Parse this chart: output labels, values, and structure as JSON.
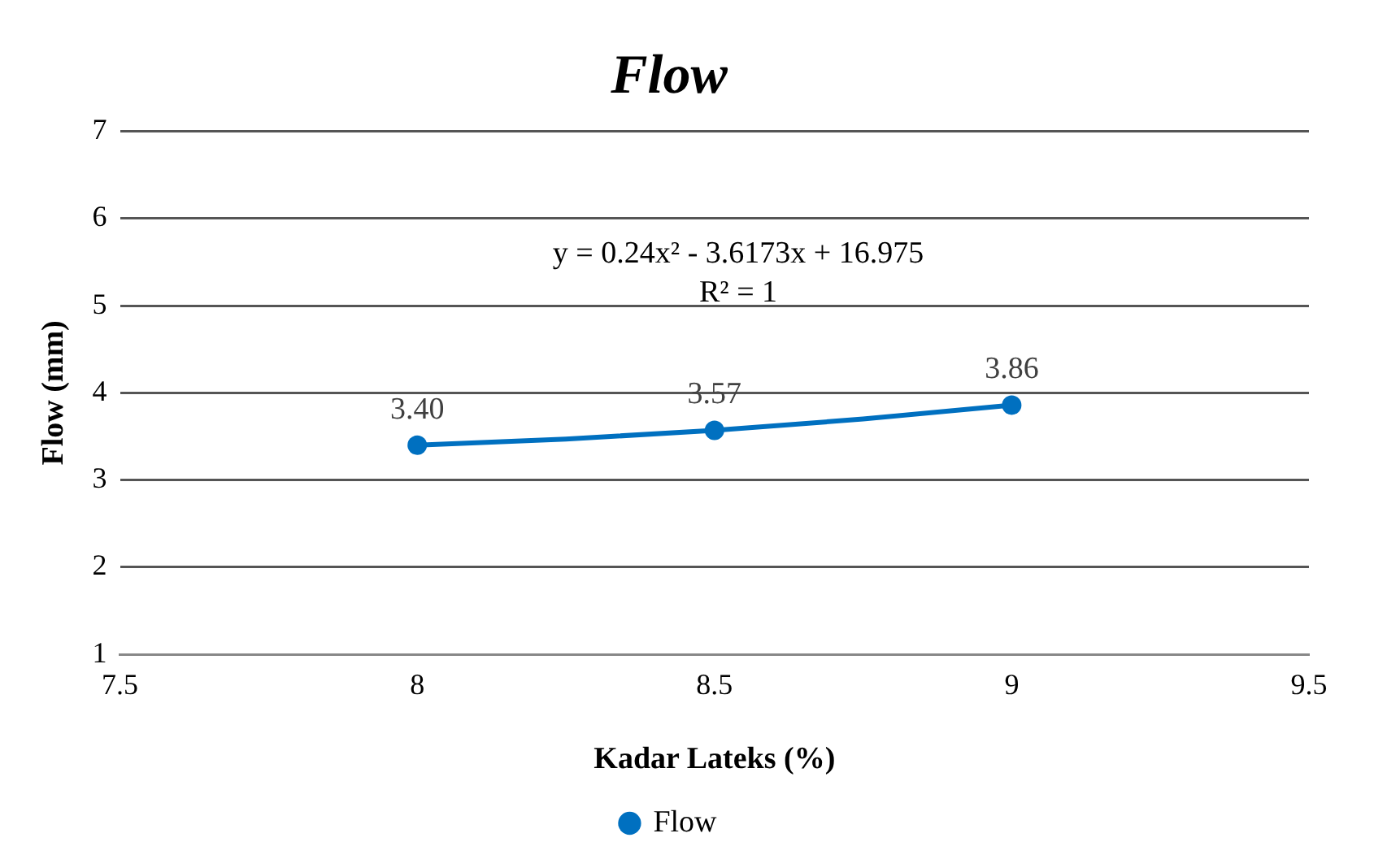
{
  "chart_data": {
    "type": "scatter",
    "title": "Flow",
    "xlabel": "Kadar Lateks (%)",
    "ylabel": "Flow (mm)",
    "xlim": [
      7.5,
      9.5
    ],
    "xticks": [
      7.5,
      8,
      8.5,
      9,
      9.5
    ],
    "ylim": [
      1,
      7
    ],
    "yticks": [
      1,
      2,
      3,
      4,
      5,
      6,
      7
    ],
    "grid": "y",
    "legend": "bottom",
    "annotations": [
      "y = 0.24x² - 3.6173x + 16.975",
      "R² = 1"
    ],
    "series": [
      {
        "name": "Flow",
        "type": "scatter",
        "marker": "circle",
        "color": "#0070c0",
        "x": [
          8,
          8.5,
          9
        ],
        "values": [
          3.4,
          3.57,
          3.86
        ],
        "value_labels": [
          "3.40",
          "3.57",
          "3.86"
        ]
      },
      {
        "type": "line",
        "marker": "none",
        "line_style": "solid",
        "color": "#0070c0",
        "x": [
          8,
          8.25,
          8.5,
          8.75,
          9
        ],
        "values": [
          3.4,
          3.47,
          3.57,
          3.7,
          3.86
        ]
      }
    ]
  }
}
